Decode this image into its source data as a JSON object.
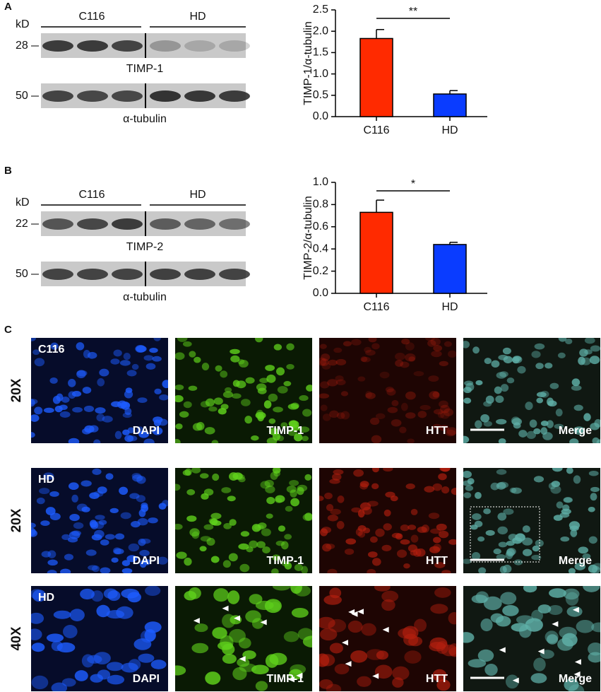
{
  "panel_labels": [
    "A",
    "B",
    "C"
  ],
  "blots": [
    {
      "unit": "kD",
      "groups": [
        "C116",
        "HD"
      ],
      "target": {
        "marker": "28",
        "name": "TIMP-1"
      },
      "control": {
        "marker": "50",
        "name": "α-tubulin"
      }
    },
    {
      "unit": "kD",
      "groups": [
        "C116",
        "HD"
      ],
      "target": {
        "marker": "22",
        "name": "TIMP-2"
      },
      "control": {
        "marker": "50",
        "name": "α-tubulin"
      }
    }
  ],
  "chart_data": [
    {
      "type": "bar",
      "ylabel": "TIMP-1/α-tubulin",
      "categories": [
        "C116",
        "HD"
      ],
      "values": [
        1.83,
        0.53
      ],
      "errors": [
        0.21,
        0.08
      ],
      "colors": [
        "#ff2a00",
        "#0a3cff"
      ],
      "ylim": [
        0,
        2.5
      ],
      "yticks": [
        {
          "value": 0,
          "label": "0.0"
        },
        0.5,
        {
          "value": 1,
          "label": "1.0"
        },
        1.5,
        {
          "value": 2,
          "label": "2.0"
        },
        2.5
      ],
      "significance": "**"
    },
    {
      "type": "bar",
      "ylabel": "TIMP-2/α-tubulin",
      "categories": [
        "C116",
        "HD"
      ],
      "values": [
        0.73,
        0.44
      ],
      "errors": [
        0.11,
        0.02
      ],
      "colors": [
        "#ff2a00",
        "#0a3cff"
      ],
      "ylim": [
        0,
        1
      ],
      "yticks": [
        {
          "value": 0,
          "label": "0.0"
        },
        0.2,
        0.4,
        0.6,
        0.8,
        {
          "value": 1,
          "label": "1.0"
        }
      ],
      "significance": "*"
    }
  ],
  "microscopy": {
    "rows": [
      {
        "magnification": "20X",
        "sample": "C116"
      },
      {
        "magnification": "20X",
        "sample": "HD"
      },
      {
        "magnification": "40X",
        "sample": "HD"
      }
    ],
    "channels": [
      "DAPI",
      "TIMP-1",
      "HTT",
      "Merge"
    ]
  }
}
